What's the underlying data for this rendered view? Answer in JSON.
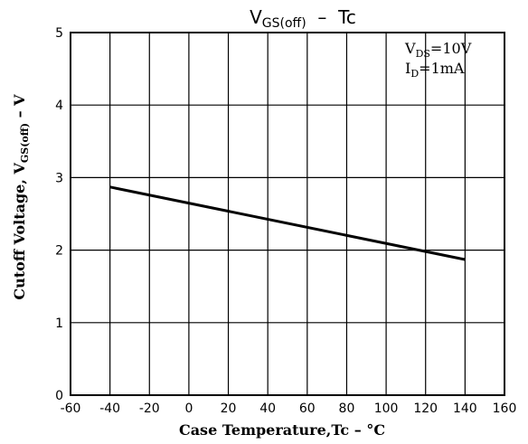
{
  "chart_data": {
    "type": "line",
    "title": {
      "main": "V",
      "sub": "GS(off)",
      "rest": "  –  Tc"
    },
    "xlabel": "Case Temperature,Tc – °C",
    "ylabel": {
      "main": "Cutoff Voltage, V",
      "sub": "GS(off)",
      "rest": " – V"
    },
    "xlim": [
      -60,
      160
    ],
    "ylim": [
      0,
      5
    ],
    "xticks": [
      -60,
      -40,
      -20,
      0,
      20,
      40,
      60,
      80,
      100,
      120,
      140,
      160
    ],
    "yticks": [
      0,
      1,
      2,
      3,
      4,
      5
    ],
    "grid": true,
    "conditions": [
      {
        "main": "V",
        "sub": "DS",
        "rest": "=10V"
      },
      {
        "main": "I",
        "sub": "D",
        "rest": "=1mA"
      }
    ],
    "series": [
      {
        "x": [
          -40,
          140
        ],
        "y": [
          2.87,
          1.87
        ]
      }
    ]
  }
}
